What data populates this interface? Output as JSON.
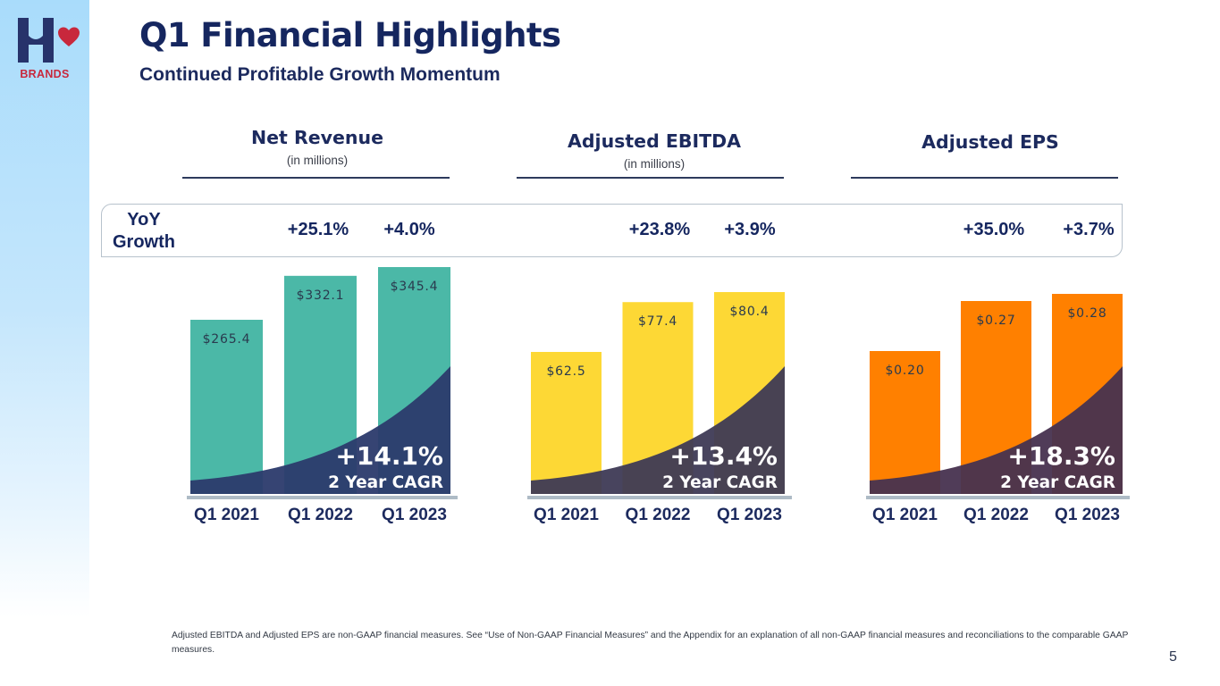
{
  "brand": {
    "logo_text": "BRANDS",
    "icon": "h-heart-logo-icon",
    "accent": "#c8283c",
    "primary": "#15265f"
  },
  "header": {
    "title": "Q1 Financial Highlights",
    "subtitle": "Continued Profitable Growth Momentum"
  },
  "growth_row": {
    "label_line1": "YoY",
    "label_line2": "Growth"
  },
  "chart_data": [
    {
      "type": "bar",
      "title": "Net Revenue",
      "subtitle": "(in millions)",
      "categories": [
        "Q1 2021",
        "Q1 2022",
        "Q1 2023"
      ],
      "values": [
        265.4,
        332.1,
        345.4
      ],
      "value_labels": [
        "$265.4",
        "$332.1",
        "$345.4"
      ],
      "yoy_growth": [
        "+25.1%",
        "+4.0%"
      ],
      "cagr_value": "+14.1%",
      "cagr_label": "2 Year CAGR",
      "bar_color": "#4bb8a7",
      "overlay_color": "#2b3a6b"
    },
    {
      "type": "bar",
      "title": "Adjusted EBITDA",
      "subtitle": "(in millions)",
      "categories": [
        "Q1 2021",
        "Q1 2022",
        "Q1 2023"
      ],
      "values": [
        62.5,
        77.4,
        80.4
      ],
      "value_labels": [
        "$62.5",
        "$77.4",
        "$80.4"
      ],
      "yoy_growth": [
        "+23.8%",
        "+3.9%"
      ],
      "cagr_value": "+13.4%",
      "cagr_label": "2 Year CAGR",
      "bar_color": "#fdd835",
      "overlay_color": "#3e3a55"
    },
    {
      "type": "bar",
      "title": "Adjusted EPS",
      "subtitle": "",
      "categories": [
        "Q1 2021",
        "Q1 2022",
        "Q1 2023"
      ],
      "values": [
        0.2,
        0.27,
        0.28
      ],
      "value_labels": [
        "$0.20",
        "$0.27",
        "$0.28"
      ],
      "yoy_growth": [
        "+35.0%",
        "+3.7%"
      ],
      "cagr_value": "+18.3%",
      "cagr_label": "2 Year CAGR",
      "bar_color": "#ff8000",
      "overlay_color": "#47324f"
    }
  ],
  "footnote": "Adjusted EBITDA and Adjusted EPS are non-GAAP financial measures. See “Use of Non-GAAP Financial Measures” and the Appendix for an explanation of all non-GAAP financial measures and reconciliations to the comparable GAAP measures.",
  "page_number": "5"
}
